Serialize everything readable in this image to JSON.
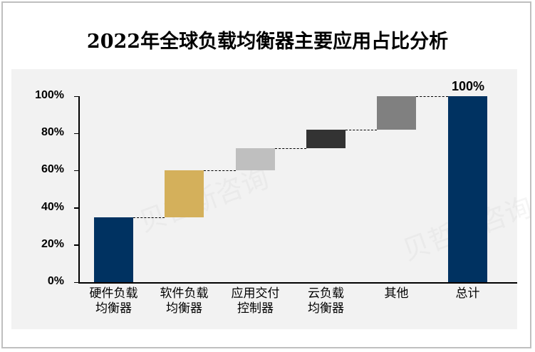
{
  "chart_data": {
    "type": "bar",
    "subtype": "waterfall",
    "title": "2022年全球负载均衡器主要应用占比分析",
    "xlabel": "",
    "ylabel": "",
    "ylim": [
      0,
      100
    ],
    "yticks": [
      "0%",
      "20%",
      "40%",
      "60%",
      "80%",
      "100%"
    ],
    "grid": false,
    "legend": null,
    "categories": [
      "硬件负载均衡器",
      "软件负载均衡器",
      "应用交付控制器",
      "云负载均衡器",
      "其他",
      "总计"
    ],
    "category_lines": [
      [
        "硬件负载",
        "均衡器"
      ],
      [
        "软件负载",
        "均衡器"
      ],
      [
        "应用交付",
        "控制器"
      ],
      [
        "云负载",
        "均衡器"
      ],
      [
        "其他"
      ],
      [
        "总计"
      ]
    ],
    "values": [
      35,
      25,
      12,
      10,
      18,
      100
    ],
    "bases": [
      0,
      35,
      60,
      72,
      82,
      0
    ],
    "tops": [
      35,
      60,
      72,
      82,
      100,
      100
    ],
    "colors": [
      "#003261",
      "#d4b05b",
      "#bfbfbf",
      "#333333",
      "#808080",
      "#003261"
    ],
    "annotations": [
      {
        "category": "总计",
        "text": "100%"
      }
    ]
  },
  "header": {
    "title": "2022年全球负载均衡器主要应用占比分析"
  },
  "axis": {
    "y_labels": [
      "100%",
      "80%",
      "60%",
      "40%",
      "20%",
      "0%"
    ]
  },
  "total_label": "100%",
  "watermark": "贝哲斯咨询"
}
